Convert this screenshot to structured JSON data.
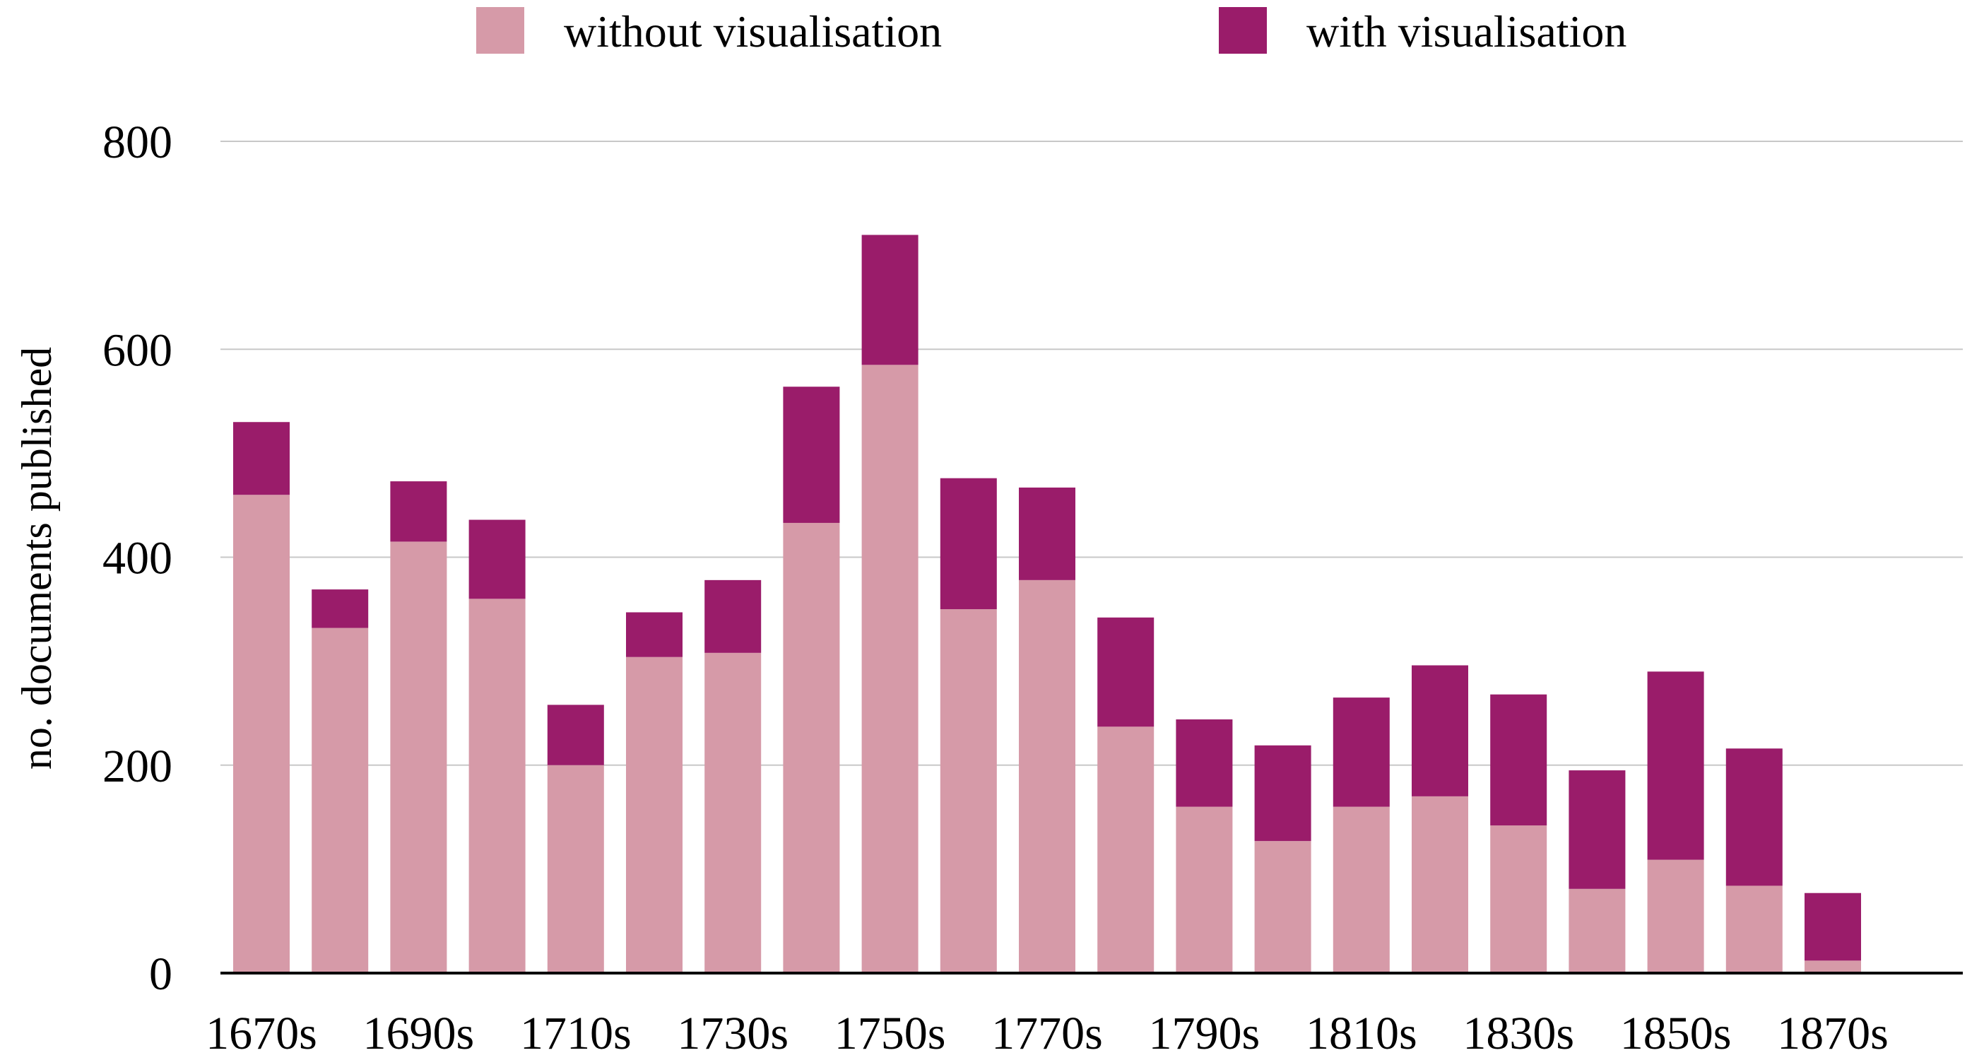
{
  "chart_data": {
    "type": "bar",
    "stacked": true,
    "title": "",
    "xlabel": "",
    "ylabel": "no. documents published",
    "ylim": [
      0,
      800
    ],
    "yticks": [
      0,
      200,
      400,
      600,
      800
    ],
    "grid": true,
    "legend_position": "top",
    "categories": [
      "1670s",
      "1680s",
      "1690s",
      "1700s",
      "1710s",
      "1720s",
      "1730s",
      "1740s",
      "1750s",
      "1760s",
      "1770s",
      "1780s",
      "1790s",
      "1800s",
      "1810s",
      "1820s",
      "1830s",
      "1840s",
      "1850s",
      "1860s",
      "1870s"
    ],
    "x_tick_labels": [
      "1670s",
      "1690s",
      "1710s",
      "1730s",
      "1750s",
      "1770s",
      "1790s",
      "1810s",
      "1830s",
      "1850s",
      "1870s"
    ],
    "series": [
      {
        "name": "without visualisation",
        "color": "#d69aa8",
        "values": [
          460,
          332,
          415,
          360,
          200,
          304,
          308,
          433,
          585,
          350,
          378,
          237,
          160,
          127,
          160,
          170,
          142,
          81,
          109,
          84,
          12
        ]
      },
      {
        "name": "with visualisation",
        "color": "#9a1c6a",
        "values": [
          70,
          37,
          58,
          76,
          58,
          43,
          70,
          131,
          125,
          126,
          89,
          105,
          84,
          92,
          105,
          126,
          126,
          114,
          181,
          132,
          65
        ]
      }
    ]
  }
}
